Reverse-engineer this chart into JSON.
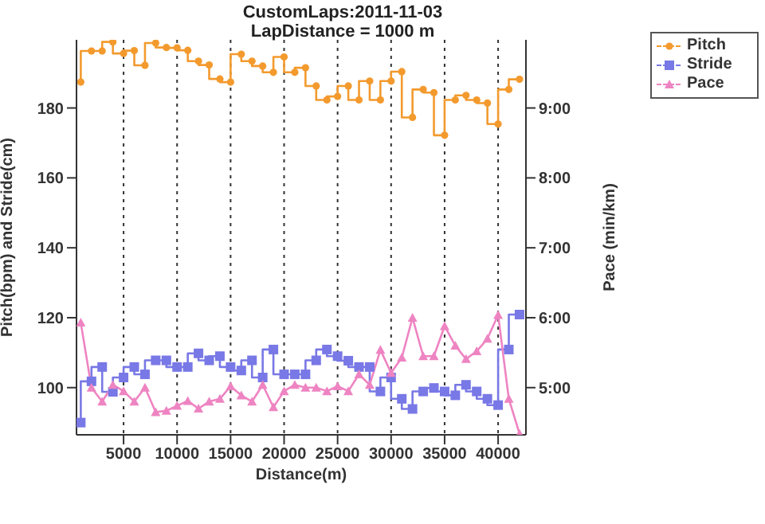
{
  "chart_data": {
    "type": "line",
    "title": "CustomLaps:2011-11-03",
    "subtitle": "LapDistance = 1000 m",
    "xlabel": "Distance(m)",
    "ylabel": "Pitch(bpm) and Stride(cm)",
    "y2label": "Pace (min/km)",
    "x": [
      1000,
      2000,
      3000,
      4000,
      5000,
      6000,
      7000,
      8000,
      9000,
      10000,
      11000,
      12000,
      13000,
      14000,
      15000,
      16000,
      17000,
      18000,
      19000,
      20000,
      21000,
      22000,
      23000,
      24000,
      25000,
      26000,
      27000,
      28000,
      29000,
      30000,
      31000,
      32000,
      33000,
      34000,
      35000,
      36000,
      37000,
      38000,
      39000,
      40000,
      41000,
      42000
    ],
    "xlim": [
      600,
      42600
    ],
    "xticks": [
      5000,
      10000,
      15000,
      20000,
      25000,
      30000,
      35000,
      40000
    ],
    "ylim": [
      86.5,
      199.5
    ],
    "yticks": [
      100,
      120,
      140,
      160,
      180
    ],
    "y2lim": [
      4.325,
      9.975
    ],
    "y2ticks": [
      {
        "value": 5,
        "label": "5:00"
      },
      {
        "value": 6,
        "label": "6:00"
      },
      {
        "value": 7,
        "label": "7:00"
      },
      {
        "value": 8,
        "label": "8:00"
      },
      {
        "value": 9,
        "label": "9:00"
      }
    ],
    "grid": true,
    "legend": "top right",
    "series": [
      {
        "name": "Pitch",
        "type": "step",
        "marker": "circle",
        "color": "#f39a2e",
        "values": [
          187.4,
          196.3,
          196.3,
          198.9,
          195.6,
          196.4,
          192.2,
          198.6,
          197.3,
          197.2,
          196.5,
          193.4,
          192.3,
          188.3,
          187.4,
          195.4,
          193.4,
          192,
          190.2,
          194.6,
          190.2,
          191.5,
          186.3,
          182.3,
          183.3,
          186.3,
          182.3,
          187.7,
          182.3,
          187.7,
          190.4,
          177.3,
          185.3,
          184.4,
          172.2,
          182.3,
          183.6,
          182.3,
          181.4,
          175.4,
          185.3,
          188.2
        ]
      },
      {
        "name": "Stride",
        "type": "step",
        "marker": "square",
        "color": "#7878e6",
        "values": [
          90,
          101.8,
          105.9,
          98.8,
          102.9,
          105.9,
          103.8,
          107.8,
          107.8,
          105.9,
          105.9,
          109.8,
          107.8,
          109,
          105.9,
          104.9,
          107.8,
          102.9,
          110.9,
          103.8,
          103.8,
          103.8,
          107.8,
          110.9,
          109,
          107.7,
          105.9,
          105.9,
          98.9,
          102.9,
          96.8,
          93.9,
          98.9,
          99.9,
          98.9,
          97.8,
          100.8,
          98.9,
          96.8,
          95,
          110.9,
          120.9
        ]
      },
      {
        "name": "Pace",
        "type": "line",
        "marker": "triangle",
        "axis": "y2",
        "color": "#ee84c2",
        "values": [
          5.93,
          5.0,
          4.8,
          5.04,
          4.95,
          4.8,
          5.0,
          4.65,
          4.67,
          4.74,
          4.81,
          4.7,
          4.8,
          4.84,
          5.02,
          4.89,
          4.8,
          5.04,
          4.72,
          4.95,
          5.04,
          5.0,
          5.0,
          4.95,
          5.02,
          4.95,
          5.19,
          5.04,
          5.54,
          5.21,
          5.43,
          6.0,
          5.45,
          5.45,
          5.88,
          5.6,
          5.41,
          5.52,
          5.7,
          6.04,
          4.84,
          4.34
        ]
      }
    ]
  }
}
